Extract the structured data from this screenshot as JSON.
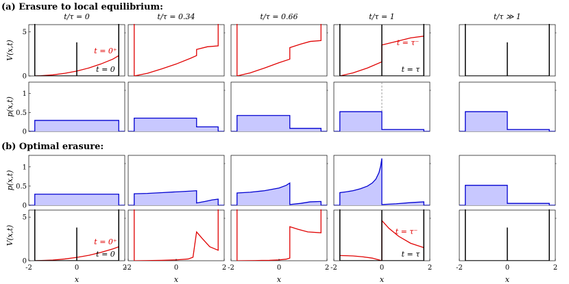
{
  "section_a_label": "(a) Erasure to local equilibrium:",
  "section_b_label": "(b) Optimal erasure:",
  "column_titles": [
    "t/τ = 0",
    "t/τ = 0.34",
    "t/τ = 0.66",
    "t/τ = 1",
    "t/τ ≫ 1"
  ],
  "x_axis_label": "x",
  "x_ticks": [
    "-2",
    "0",
    "2"
  ],
  "colors": {
    "potential": "#e00000",
    "probability": "#0000d0",
    "fill": "#c8c8ff",
    "barrier": "#000000",
    "dashed": "#888888"
  },
  "chart_data": [
    {
      "type": "line",
      "panel": "a-V-0",
      "ylabel": "V(x,t)",
      "xlim": [
        -2,
        2
      ],
      "ylim": [
        0,
        5.8
      ],
      "yticks": [
        0,
        5
      ],
      "annotations": [
        "t = 0⁺",
        "t = 0"
      ],
      "series": [
        {
          "name": "t = 0⁺",
          "color": "red",
          "x": [
            -1.75,
            -1.5,
            -1.0,
            -0.5,
            0,
            0.5,
            1.0,
            1.5,
            1.75
          ],
          "y": [
            0,
            0.03,
            0.12,
            0.3,
            0.55,
            0.9,
            1.35,
            1.9,
            2.3
          ]
        },
        {
          "name": "t = 0",
          "color": "black",
          "x": [
            -1.75,
            0,
            0,
            0,
            1.75
          ],
          "y": [
            0,
            0,
            3.8,
            0,
            0
          ]
        }
      ]
    },
    {
      "type": "line",
      "panel": "a-V-1",
      "xlim": [
        -2,
        2
      ],
      "ylim": [
        0,
        5.8
      ],
      "series": [
        {
          "color": "red",
          "x": [
            -1.75,
            -1.2,
            -0.6,
            0,
            0.6,
            0.85,
            0.85,
            1.3,
            1.75
          ],
          "y": [
            0,
            0.3,
            0.8,
            1.35,
            2.0,
            2.3,
            3.0,
            3.3,
            3.4
          ]
        }
      ]
    },
    {
      "type": "line",
      "panel": "a-V-2",
      "xlim": [
        -2,
        2
      ],
      "ylim": [
        0,
        5.8
      ],
      "series": [
        {
          "color": "red",
          "x": [
            -1.75,
            -1.2,
            -0.6,
            0,
            0.45,
            0.45,
            0.9,
            1.3,
            1.75
          ],
          "y": [
            0,
            0.35,
            0.9,
            1.5,
            1.9,
            3.2,
            3.6,
            3.9,
            4.0
          ]
        }
      ]
    },
    {
      "type": "line",
      "panel": "a-V-3",
      "xlim": [
        -2,
        2
      ],
      "ylim": [
        0,
        5.8
      ],
      "annotations": [
        "t = τ⁻",
        "t = τ"
      ],
      "series": [
        {
          "name": "t = τ⁻",
          "color": "red",
          "x": [
            -1.75,
            -1.2,
            -0.6,
            0,
            0,
            0.6,
            1.2,
            1.75
          ],
          "y": [
            0,
            0.35,
            0.9,
            1.6,
            3.5,
            3.9,
            4.3,
            4.5
          ]
        },
        {
          "name": "t = τ",
          "color": "black",
          "x": [
            -1.75,
            0,
            0,
            0,
            1.75
          ],
          "y": [
            0,
            0,
            5.8,
            0,
            0
          ]
        }
      ]
    },
    {
      "type": "line",
      "panel": "a-V-4",
      "xlim": [
        -2,
        2
      ],
      "ylim": [
        0,
        5.8
      ],
      "series": [
        {
          "color": "black",
          "x": [
            -1.75,
            0,
            0,
            0,
            1.75
          ],
          "y": [
            0,
            0,
            3.8,
            0,
            0
          ]
        }
      ]
    },
    {
      "type": "area",
      "panel": "a-p-0",
      "ylabel": "p(x,t)",
      "xlim": [
        -2,
        2
      ],
      "ylim": [
        0,
        1.3
      ],
      "yticks": [
        0,
        0.5,
        1
      ],
      "series": [
        {
          "color": "blue",
          "x": [
            -1.75,
            1.75
          ],
          "y": [
            0.29,
            0.29
          ]
        }
      ]
    },
    {
      "type": "area",
      "panel": "a-p-1",
      "xlim": [
        -2,
        2
      ],
      "ylim": [
        0,
        1.3
      ],
      "series": [
        {
          "color": "blue",
          "x": [
            -1.75,
            0.85,
            0.85,
            1.75
          ],
          "y": [
            0.35,
            0.35,
            0.12,
            0.12
          ]
        }
      ]
    },
    {
      "type": "area",
      "panel": "a-p-2",
      "xlim": [
        -2,
        2
      ],
      "ylim": [
        0,
        1.3
      ],
      "series": [
        {
          "color": "blue",
          "x": [
            -1.75,
            0.45,
            0.45,
            1.75
          ],
          "y": [
            0.42,
            0.42,
            0.08,
            0.08
          ]
        }
      ]
    },
    {
      "type": "area",
      "panel": "a-p-3",
      "xlim": [
        -2,
        2
      ],
      "ylim": [
        0,
        1.3
      ],
      "series": [
        {
          "color": "blue",
          "x": [
            -1.75,
            0,
            0,
            1.75
          ],
          "y": [
            0.52,
            0.52,
            0.05,
            0.05
          ]
        }
      ]
    },
    {
      "type": "area",
      "panel": "a-p-4",
      "xlim": [
        -2,
        2
      ],
      "ylim": [
        0,
        1.3
      ],
      "series": [
        {
          "color": "blue",
          "x": [
            -1.75,
            0,
            0,
            1.75
          ],
          "y": [
            0.52,
            0.52,
            0.05,
            0.05
          ]
        }
      ]
    },
    {
      "type": "area",
      "panel": "b-p-0",
      "ylabel": "p(x,t)",
      "xlim": [
        -2,
        2
      ],
      "ylim": [
        0,
        1.3
      ],
      "yticks": [
        0,
        0.5,
        1
      ],
      "series": [
        {
          "color": "blue",
          "x": [
            -1.75,
            1.75
          ],
          "y": [
            0.29,
            0.29
          ]
        }
      ]
    },
    {
      "type": "area",
      "panel": "b-p-1",
      "xlim": [
        -2,
        2
      ],
      "ylim": [
        0,
        1.3
      ],
      "series": [
        {
          "color": "blue",
          "x": [
            -1.75,
            -1.2,
            -0.6,
            0,
            0.6,
            0.85,
            0.85,
            1.2,
            1.5,
            1.75
          ],
          "y": [
            0.3,
            0.31,
            0.33,
            0.35,
            0.37,
            0.38,
            0.06,
            0.1,
            0.14,
            0.16
          ]
        }
      ]
    },
    {
      "type": "area",
      "panel": "b-p-2",
      "xlim": [
        -2,
        2
      ],
      "ylim": [
        0,
        1.3
      ],
      "series": [
        {
          "color": "blue",
          "x": [
            -1.75,
            -1.2,
            -0.6,
            0,
            0.3,
            0.45,
            0.45,
            0.9,
            1.3,
            1.75
          ],
          "y": [
            0.32,
            0.34,
            0.38,
            0.45,
            0.52,
            0.58,
            0.02,
            0.05,
            0.09,
            0.1
          ]
        }
      ]
    },
    {
      "type": "area",
      "panel": "b-p-3",
      "xlim": [
        -2,
        2
      ],
      "ylim": [
        0,
        1.3
      ],
      "series": [
        {
          "color": "blue",
          "x": [
            -1.75,
            -1.5,
            -1.2,
            -0.9,
            -0.6,
            -0.4,
            -0.25,
            -0.12,
            -0.05,
            0,
            0,
            0.6,
            1.2,
            1.75
          ],
          "y": [
            0.33,
            0.35,
            0.38,
            0.43,
            0.5,
            0.58,
            0.68,
            0.85,
            1.02,
            1.22,
            0.02,
            0.04,
            0.07,
            0.09
          ]
        }
      ]
    },
    {
      "type": "area",
      "panel": "b-p-4",
      "xlim": [
        -2,
        2
      ],
      "ylim": [
        0,
        1.3
      ],
      "series": [
        {
          "color": "blue",
          "x": [
            -1.75,
            0,
            0,
            1.75
          ],
          "y": [
            0.52,
            0.52,
            0.05,
            0.05
          ]
        }
      ]
    },
    {
      "type": "line",
      "panel": "b-V-0",
      "ylabel": "V(x,t)",
      "xlim": [
        -2,
        2
      ],
      "ylim": [
        0,
        5.8
      ],
      "yticks": [
        0,
        5
      ],
      "annotations": [
        "t = 0⁺",
        "t = 0"
      ],
      "series": [
        {
          "name": "t = 0⁺",
          "color": "red",
          "x": [
            -1.75,
            -1.0,
            -0.5,
            0,
            0.5,
            1.0,
            1.5,
            1.75
          ],
          "y": [
            0,
            0.08,
            0.2,
            0.38,
            0.62,
            0.95,
            1.35,
            1.6
          ]
        },
        {
          "name": "t = 0",
          "color": "black",
          "x": [
            -1.75,
            0,
            0,
            0,
            1.75
          ],
          "y": [
            0,
            0,
            3.8,
            0,
            0
          ]
        }
      ]
    },
    {
      "type": "line",
      "panel": "b-V-1",
      "xlim": [
        -2,
        2
      ],
      "ylim": [
        0,
        5.8
      ],
      "series": [
        {
          "color": "red",
          "x": [
            -1.75,
            -1.2,
            -0.6,
            0,
            0.5,
            0.7,
            0.85,
            0.85,
            1.1,
            1.4,
            1.75
          ],
          "y": [
            0,
            0.02,
            0.05,
            0.1,
            0.2,
            0.4,
            3.3,
            3.3,
            2.5,
            1.6,
            1.2
          ]
        }
      ]
    },
    {
      "type": "line",
      "panel": "b-V-2",
      "xlim": [
        -2,
        2
      ],
      "ylim": [
        0,
        5.8
      ],
      "series": [
        {
          "color": "red",
          "x": [
            -1.75,
            -1.0,
            -0.4,
            0,
            0.3,
            0.45,
            0.45,
            0.8,
            1.2,
            1.75
          ],
          "y": [
            0,
            0.02,
            0.05,
            0.1,
            0.18,
            0.3,
            3.9,
            3.6,
            3.3,
            3.2
          ]
        }
      ]
    },
    {
      "type": "line",
      "panel": "b-V-3",
      "xlim": [
        -2,
        2
      ],
      "ylim": [
        0,
        5.8
      ],
      "annotations": [
        "t = τ⁻",
        "t = τ"
      ],
      "series": [
        {
          "name": "t = τ⁻",
          "color": "red",
          "x": [
            -1.75,
            -1.2,
            -0.8,
            -0.4,
            -0.15,
            0,
            0,
            0.3,
            0.7,
            1.2,
            1.75
          ],
          "y": [
            0.6,
            0.55,
            0.45,
            0.3,
            0.12,
            0,
            4.6,
            3.7,
            2.8,
            2.0,
            1.5
          ]
        },
        {
          "name": "t = τ",
          "color": "black",
          "x": [
            -1.75,
            0,
            0,
            0,
            1.75
          ],
          "y": [
            0,
            0,
            5.8,
            0,
            0
          ]
        }
      ]
    },
    {
      "type": "line",
      "panel": "b-V-4",
      "xlim": [
        -2,
        2
      ],
      "ylim": [
        0,
        5.8
      ],
      "series": [
        {
          "color": "black",
          "x": [
            -1.75,
            0,
            0,
            0,
            1.75
          ],
          "y": [
            0,
            0,
            3.8,
            0,
            0
          ]
        }
      ]
    }
  ],
  "annotation_labels": {
    "t0plus": "t = 0⁺",
    "t0": "t = 0",
    "ttauminus": "t = τ⁻",
    "ttau": "t = τ"
  },
  "y_labels": {
    "V": "V(x,t)",
    "p": "p(x,t)"
  },
  "y_ticks_V": [
    "0",
    "5"
  ],
  "y_ticks_p": [
    "0",
    "0.5",
    "1"
  ]
}
